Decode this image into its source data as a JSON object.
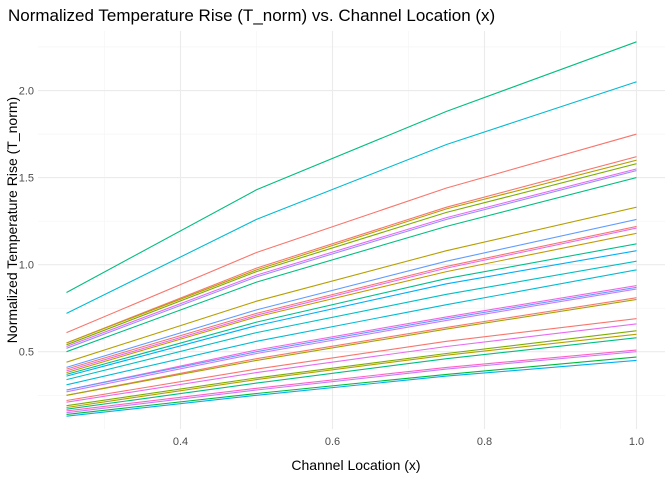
{
  "chart_data": {
    "type": "line",
    "title": "Normalized Temperature Rise (T_norm) vs. Channel Location (x)",
    "xlabel": "Channel Location (x)",
    "ylabel": "Normalized Temperature Rise (T_norm)",
    "x": [
      0.25,
      0.5,
      0.75,
      1.0
    ],
    "xlim": [
      0.2125,
      1.0375
    ],
    "ylim": [
      0.0563,
      2.3418
    ],
    "x_ticks": [
      0.4,
      0.6,
      0.8,
      1.0
    ],
    "x_tick_labels": [
      "0.4",
      "0.6",
      "0.8",
      "1.0"
    ],
    "y_ticks": [
      0.5,
      1.0,
      1.5,
      2.0
    ],
    "y_tick_labels": [
      "0.5",
      "1.0",
      "1.5",
      "2.0"
    ],
    "grid": true,
    "legend": "none",
    "series": [
      {
        "color": "#00BF7D",
        "values": [
          0.84,
          1.43,
          1.88,
          2.28
        ]
      },
      {
        "color": "#00BBD4",
        "values": [
          0.72,
          1.26,
          1.69,
          2.05
        ]
      },
      {
        "color": "#F8766D",
        "values": [
          0.61,
          1.07,
          1.44,
          1.75
        ]
      },
      {
        "color": "#F8766D",
        "values": [
          0.55,
          0.98,
          1.33,
          1.62
        ]
      },
      {
        "color": "#B79F00",
        "values": [
          0.55,
          0.97,
          1.32,
          1.6
        ]
      },
      {
        "color": "#7CAE00",
        "values": [
          0.54,
          0.96,
          1.3,
          1.58
        ]
      },
      {
        "color": "#E76BF3",
        "values": [
          0.53,
          0.94,
          1.27,
          1.55
        ]
      },
      {
        "color": "#9590FF",
        "values": [
          0.52,
          0.93,
          1.26,
          1.54
        ]
      },
      {
        "color": "#00BF7D",
        "values": [
          0.5,
          0.9,
          1.22,
          1.5
        ]
      },
      {
        "color": "#B79F00",
        "values": [
          0.44,
          0.79,
          1.08,
          1.33
        ]
      },
      {
        "color": "#619CFF",
        "values": [
          0.41,
          0.74,
          1.02,
          1.26
        ]
      },
      {
        "color": "#F8766D",
        "values": [
          0.4,
          0.72,
          0.99,
          1.22
        ]
      },
      {
        "color": "#E76BF3",
        "values": [
          0.39,
          0.71,
          0.98,
          1.21
        ]
      },
      {
        "color": "#C49A00",
        "values": [
          0.38,
          0.7,
          0.96,
          1.18
        ]
      },
      {
        "color": "#00C08B",
        "values": [
          0.37,
          0.67,
          0.92,
          1.12
        ]
      },
      {
        "color": "#00B0F6",
        "values": [
          0.36,
          0.65,
          0.89,
          1.08
        ]
      },
      {
        "color": "#00BFC4",
        "values": [
          0.34,
          0.61,
          0.83,
          1.02
        ]
      },
      {
        "color": "#00BBD4",
        "values": [
          0.31,
          0.56,
          0.77,
          0.97
        ]
      },
      {
        "color": "#F564E3",
        "values": [
          0.28,
          0.51,
          0.7,
          0.88
        ]
      },
      {
        "color": "#619CFF",
        "values": [
          0.28,
          0.5,
          0.69,
          0.87
        ]
      },
      {
        "color": "#C77CFF",
        "values": [
          0.27,
          0.49,
          0.68,
          0.86
        ]
      },
      {
        "color": "#F8766D",
        "values": [
          0.25,
          0.46,
          0.64,
          0.81
        ]
      },
      {
        "color": "#A3A500",
        "values": [
          0.25,
          0.45,
          0.63,
          0.8
        ]
      },
      {
        "color": "#F8766D",
        "values": [
          0.22,
          0.4,
          0.56,
          0.69
        ]
      },
      {
        "color": "#E76BF3",
        "values": [
          0.21,
          0.38,
          0.53,
          0.66
        ]
      },
      {
        "color": "#7CAE00",
        "values": [
          0.19,
          0.35,
          0.49,
          0.62
        ]
      },
      {
        "color": "#B79F00",
        "values": [
          0.18,
          0.34,
          0.48,
          0.6
        ]
      },
      {
        "color": "#00BF7D",
        "values": [
          0.17,
          0.32,
          0.46,
          0.58
        ]
      },
      {
        "color": "#FF61C3",
        "values": [
          0.16,
          0.29,
          0.41,
          0.51
        ]
      },
      {
        "color": "#C77CFF",
        "values": [
          0.15,
          0.28,
          0.4,
          0.5
        ]
      },
      {
        "color": "#00BA38",
        "values": [
          0.14,
          0.26,
          0.37,
          0.47
        ]
      },
      {
        "color": "#00B0F6",
        "values": [
          0.13,
          0.25,
          0.36,
          0.45
        ]
      }
    ]
  }
}
